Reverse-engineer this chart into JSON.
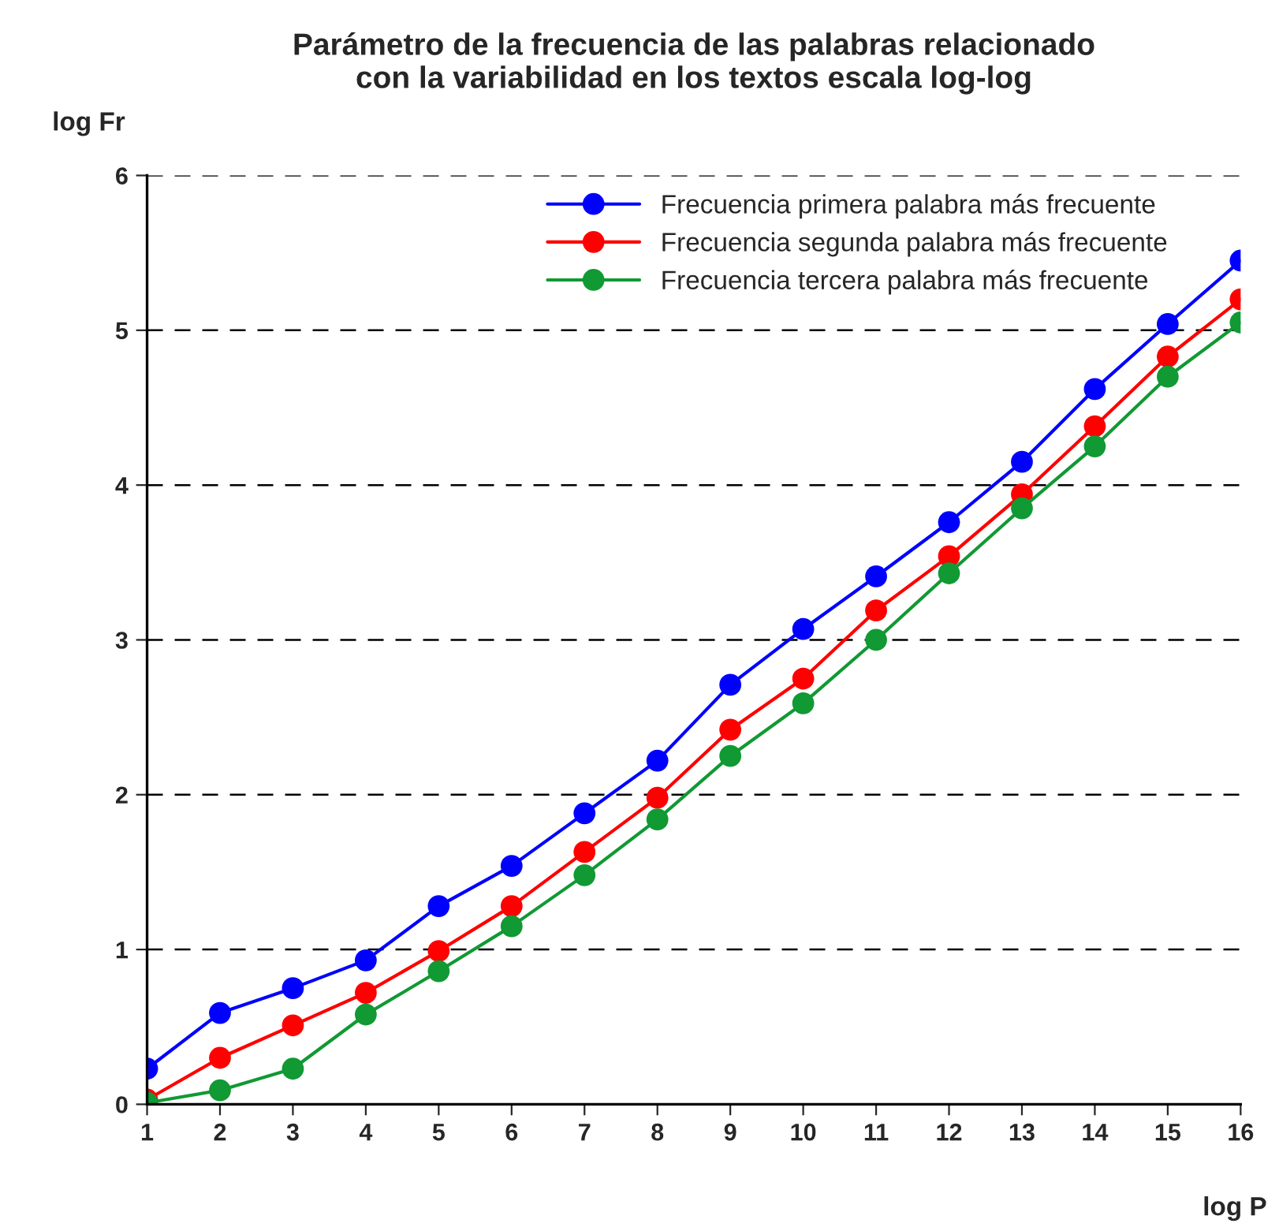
{
  "chart_data": {
    "type": "line",
    "title": "Parámetro de la frecuencia de las palabras relacionado\ncon la variabilidad en los textos escala log-log",
    "xlabel": "log P",
    "ylabel": "log Fr",
    "x": [
      1,
      2,
      3,
      4,
      5,
      6,
      7,
      8,
      9,
      10,
      11,
      12,
      13,
      14,
      15,
      16
    ],
    "series": [
      {
        "name": "Frecuencia primera palabra más frecuente",
        "color": "#0000ff",
        "values": [
          0.23,
          0.59,
          0.75,
          0.93,
          1.28,
          1.54,
          1.88,
          2.22,
          2.71,
          3.07,
          3.41,
          3.76,
          4.15,
          4.62,
          5.04,
          5.45
        ]
      },
      {
        "name": "Frecuencia segunda palabra más frecuente",
        "color": "#ff0000",
        "values": [
          0.03,
          0.3,
          0.51,
          0.72,
          0.99,
          1.28,
          1.63,
          1.98,
          2.42,
          2.75,
          3.19,
          3.54,
          3.94,
          4.38,
          4.83,
          5.2
        ]
      },
      {
        "name": "Frecuencia tercera palabra más frecuente",
        "color": "#119933",
        "values": [
          0.01,
          0.09,
          0.23,
          0.58,
          0.86,
          1.15,
          1.48,
          1.84,
          2.25,
          2.59,
          3.0,
          3.43,
          3.85,
          4.25,
          4.7,
          5.05
        ]
      }
    ],
    "xlim": [
      1,
      16
    ],
    "xticks": [
      1,
      2,
      3,
      4,
      5,
      6,
      7,
      8,
      9,
      10,
      11,
      12,
      13,
      14,
      15,
      16
    ],
    "ylim": [
      0,
      6
    ],
    "yticks": [
      0,
      1,
      2,
      3,
      4,
      5,
      6
    ],
    "grid": "y",
    "legend": "top right",
    "marker": "circle",
    "line_style": "solid"
  }
}
